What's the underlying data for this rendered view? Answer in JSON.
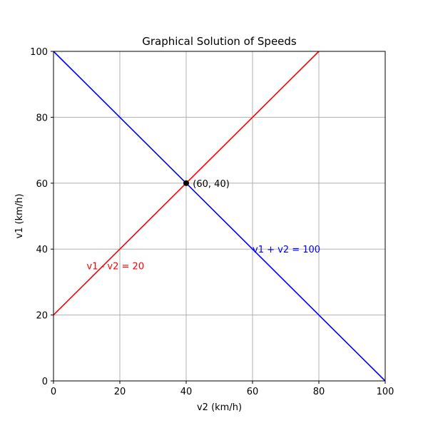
{
  "chart_data": {
    "type": "line",
    "title": "Graphical Solution of Speeds",
    "xlabel": "v2 (km/h)",
    "ylabel": "v1 (km/h)",
    "xlim": [
      0,
      100
    ],
    "ylim": [
      0,
      100
    ],
    "xticks": [
      0,
      20,
      40,
      60,
      80,
      100
    ],
    "yticks": [
      0,
      20,
      40,
      60,
      80,
      100
    ],
    "grid": true,
    "series": [
      {
        "name": "v1 + v2 = 100",
        "color": "#0000ff",
        "x": [
          0,
          100
        ],
        "y": [
          100,
          0
        ]
      },
      {
        "name": "v1 - v2 = 20",
        "color": "#ff0000",
        "x": [
          0,
          80
        ],
        "y": [
          20,
          100
        ]
      }
    ],
    "points": [
      {
        "x": 40,
        "y": 60,
        "color": "#000000"
      }
    ],
    "annotations": [
      {
        "text": "v1 + v2 = 100",
        "x": 60,
        "y": 40,
        "color": "#0000ff"
      },
      {
        "text": "v1 - v2 = 20",
        "x": 10,
        "y": 35,
        "color": "#ff0000"
      },
      {
        "text": "(60, 40)",
        "x": 42,
        "y": 60,
        "color": "#000000"
      }
    ]
  }
}
